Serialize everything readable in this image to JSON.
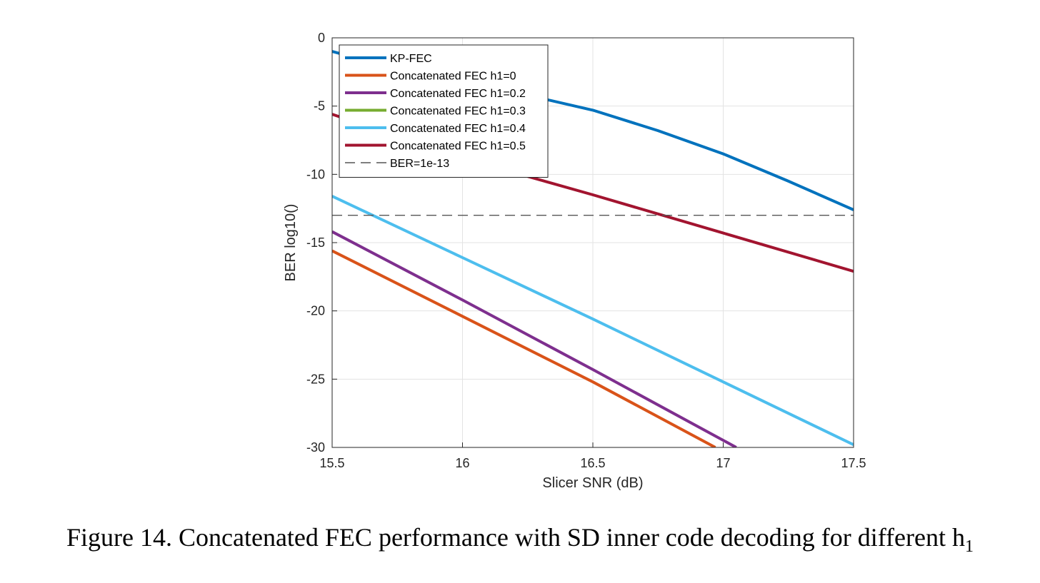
{
  "chart_data": {
    "type": "line",
    "xlabel": "Slicer SNR (dB)",
    "ylabel": "BER log10()",
    "xlim": [
      15.5,
      17.5
    ],
    "ylim": [
      -30,
      0
    ],
    "xticks": [
      15.5,
      16,
      16.5,
      17,
      17.5
    ],
    "xtick_labels": [
      "15.5",
      "16",
      "16.5",
      "17",
      "17.5"
    ],
    "yticks": [
      0,
      -5,
      -10,
      -15,
      -20,
      -25,
      -30
    ],
    "ytick_labels": [
      "0",
      "-5",
      "-10",
      "-15",
      "-20",
      "-25",
      "-30"
    ],
    "grid": true,
    "legend_position": "top-left",
    "series": [
      {
        "name": "KP-FEC",
        "color": "#0072BD",
        "dashed": false,
        "x": [
          15.5,
          15.75,
          16,
          16.25,
          16.5,
          16.75,
          17,
          17.25,
          17.5
        ],
        "y": [
          -1.0,
          -2.3,
          -3.2,
          -4.2,
          -5.3,
          -6.8,
          -8.5,
          -10.5,
          -12.6
        ]
      },
      {
        "name": "Concatenated FEC h1=0",
        "color": "#D95319",
        "dashed": false,
        "x": [
          15.5,
          16,
          16.5,
          16.97
        ],
        "y": [
          -15.6,
          -20.4,
          -25.2,
          -30
        ]
      },
      {
        "name": "Concatenated FEC h1=0.2",
        "color": "#7E2F8E",
        "dashed": false,
        "x": [
          15.5,
          16,
          16.5,
          17.05
        ],
        "y": [
          -14.2,
          -19.2,
          -24.3,
          -30
        ]
      },
      {
        "name": "Concatenated FEC h1=0.3",
        "color": "#77AC30",
        "dashed": false,
        "x": [],
        "y": []
      },
      {
        "name": "Concatenated FEC h1=0.4",
        "color": "#4DBEEE",
        "dashed": false,
        "x": [
          15.5,
          16,
          16.5,
          17,
          17.5
        ],
        "y": [
          -11.6,
          -16.1,
          -20.6,
          -25.2,
          -29.8
        ]
      },
      {
        "name": "Concatenated FEC h1=0.5",
        "color": "#A2142F",
        "dashed": false,
        "x": [
          15.5,
          15.75,
          16,
          16.5,
          17,
          17.5
        ],
        "y": [
          -5.6,
          -7.2,
          -8.8,
          -11.5,
          -14.3,
          -17.1
        ]
      },
      {
        "name": "BER=1e-13",
        "color": "#555555",
        "dashed": true,
        "x": [
          15.5,
          17.5
        ],
        "y": [
          -13,
          -13
        ]
      }
    ]
  },
  "caption": {
    "text": "Figure 14. Concatenated FEC performance with SD inner code decoding for different h",
    "subscript": "1"
  }
}
